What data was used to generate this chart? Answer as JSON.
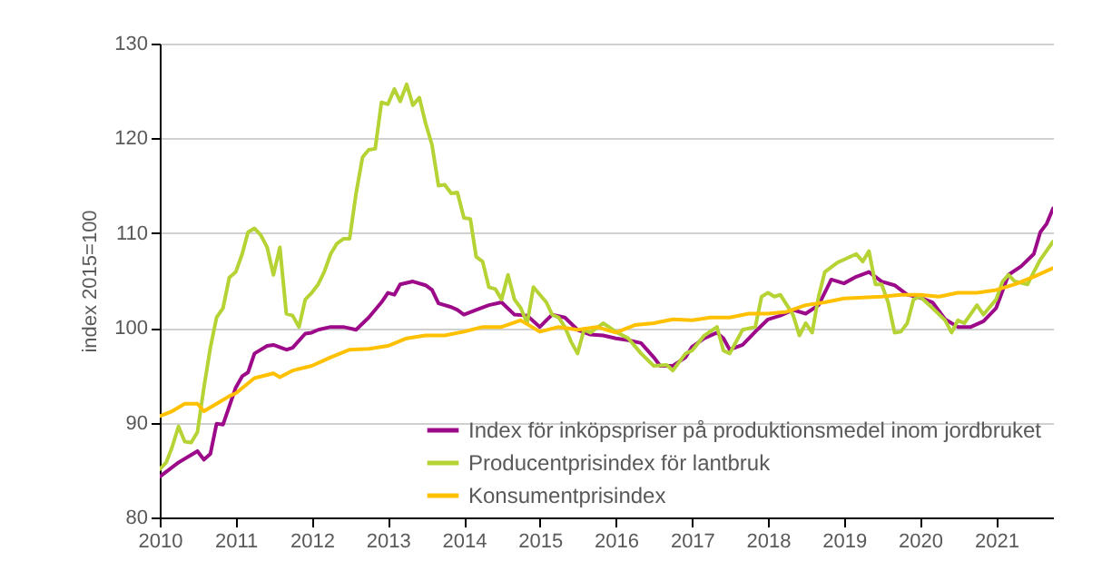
{
  "chart_data": {
    "type": "line",
    "ylabel": "index  2015=100",
    "ylim": [
      80,
      130
    ],
    "yticks": [
      80,
      90,
      100,
      110,
      120,
      130
    ],
    "xlim": [
      "2010-01",
      "2021-10"
    ],
    "xticks": [
      "2010",
      "2011",
      "2012",
      "2013",
      "2014",
      "2015",
      "2016",
      "2017",
      "2018",
      "2019",
      "2020",
      "2021"
    ],
    "grid": "y",
    "legend": "bottom right",
    "marker": "none",
    "line_style": "solid",
    "series": [
      {
        "name": "Index för inköpspriser på produktionsmedel inom jordbruket",
        "color": "#9c0a8a",
        "x": [
          "2010-01",
          "2010-04",
          "2010-07",
          "2010-08",
          "2010-09",
          "2010-10",
          "2010-11",
          "2011-01",
          "2011-02",
          "2011-03",
          "2011-04",
          "2011-06",
          "2011-07",
          "2011-09",
          "2011-10",
          "2011-12",
          "2012-01",
          "2012-02",
          "2012-04",
          "2012-06",
          "2012-08",
          "2012-10",
          "2012-12",
          "2013-01",
          "2013-02",
          "2013-03",
          "2013-05",
          "2013-07",
          "2013-08",
          "2013-09",
          "2013-11",
          "2013-12",
          "2014-01",
          "2014-03",
          "2014-05",
          "2014-07",
          "2014-09",
          "2014-11",
          "2015-01",
          "2015-02",
          "2015-03",
          "2015-05",
          "2015-07",
          "2015-09",
          "2015-11",
          "2016-01",
          "2016-03",
          "2016-05",
          "2016-07",
          "2016-08",
          "2016-10",
          "2016-12",
          "2017-01",
          "2017-03",
          "2017-05",
          "2017-06",
          "2017-07",
          "2017-09",
          "2017-11",
          "2018-01",
          "2018-03",
          "2018-05",
          "2018-07",
          "2018-09",
          "2018-11",
          "2019-01",
          "2019-03",
          "2019-05",
          "2019-07",
          "2019-09",
          "2019-11",
          "2020-01",
          "2020-03",
          "2020-05",
          "2020-07",
          "2020-09",
          "2020-11",
          "2021-01",
          "2021-03",
          "2021-05",
          "2021-07",
          "2021-08",
          "2021-09",
          "2021-10"
        ],
        "values": [
          84.3,
          85.8,
          87.0,
          86.1,
          86.7,
          89.9,
          89.8,
          93.7,
          94.9,
          95.3,
          97.3,
          98.1,
          98.2,
          97.7,
          97.9,
          99.4,
          99.5,
          99.8,
          100.1,
          100.1,
          99.8,
          101.1,
          102.7,
          103.7,
          103.5,
          104.6,
          104.9,
          104.5,
          104.0,
          102.6,
          102.2,
          101.9,
          101.4,
          101.9,
          102.4,
          102.7,
          101.4,
          101.3,
          100.1,
          100.8,
          101.4,
          101.1,
          99.8,
          99.3,
          99.2,
          98.9,
          98.7,
          98.4,
          96.9,
          96.0,
          96.0,
          96.9,
          98.0,
          98.9,
          99.5,
          98.9,
          97.7,
          98.2,
          99.6,
          100.9,
          101.3,
          101.9,
          101.5,
          102.4,
          105.1,
          104.7,
          105.4,
          105.9,
          104.9,
          104.5,
          103.5,
          103.2,
          102.7,
          100.9,
          100.1,
          100.1,
          100.7,
          102.1,
          105.6,
          106.5,
          107.8,
          110.1,
          111.0,
          112.6
        ]
      },
      {
        "name": "Producentprisindex för lantbruk",
        "color": "#b5d334",
        "x": [
          "2010-01",
          "2010-02",
          "2010-03",
          "2010-04",
          "2010-05",
          "2010-06",
          "2010-07",
          "2010-08",
          "2010-09",
          "2010-10",
          "2010-11",
          "2010-12",
          "2011-01",
          "2011-02",
          "2011-03",
          "2011-04",
          "2011-05",
          "2011-06",
          "2011-07",
          "2011-08",
          "2011-09",
          "2011-10",
          "2011-11",
          "2011-12",
          "2012-01",
          "2012-02",
          "2012-03",
          "2012-04",
          "2012-05",
          "2012-06",
          "2012-07",
          "2012-08",
          "2012-09",
          "2012-10",
          "2012-11",
          "2012-12",
          "2013-01",
          "2013-02",
          "2013-03",
          "2013-04",
          "2013-05",
          "2013-06",
          "2013-07",
          "2013-08",
          "2013-09",
          "2013-10",
          "2013-11",
          "2013-12",
          "2014-01",
          "2014-02",
          "2014-03",
          "2014-04",
          "2014-05",
          "2014-06",
          "2014-07",
          "2014-08",
          "2014-09",
          "2014-10",
          "2014-11",
          "2014-12",
          "2015-02",
          "2015-03",
          "2015-04",
          "2015-05",
          "2015-06",
          "2015-07",
          "2015-08",
          "2015-09",
          "2015-11",
          "2016-01",
          "2016-03",
          "2016-05",
          "2016-07",
          "2016-09",
          "2016-10",
          "2016-12",
          "2017-01",
          "2017-03",
          "2017-05",
          "2017-06",
          "2017-07",
          "2017-09",
          "2017-11",
          "2017-12",
          "2018-01",
          "2018-02",
          "2018-03",
          "2018-05",
          "2018-06",
          "2018-07",
          "2018-08",
          "2018-09",
          "2018-10",
          "2018-12",
          "2019-01",
          "2019-03",
          "2019-04",
          "2019-05",
          "2019-06",
          "2019-07",
          "2019-08",
          "2019-09",
          "2019-10",
          "2019-11",
          "2019-12",
          "2020-01",
          "2020-03",
          "2020-05",
          "2020-06",
          "2020-07",
          "2020-08",
          "2020-10",
          "2020-11",
          "2021-01",
          "2021-02",
          "2021-03",
          "2021-04",
          "2021-06",
          "2021-07",
          "2021-08",
          "2021-10"
        ],
        "values": [
          85.1,
          85.8,
          87.4,
          89.6,
          88.0,
          87.9,
          89.0,
          93.7,
          97.9,
          101.1,
          102.1,
          105.3,
          105.9,
          107.8,
          110.1,
          110.5,
          109.8,
          108.5,
          105.6,
          108.5,
          101.5,
          101.3,
          100.1,
          103.0,
          103.7,
          104.6,
          105.9,
          107.8,
          108.9,
          109.4,
          109.4,
          114.2,
          118.0,
          118.8,
          118.9,
          123.8,
          123.6,
          125.2,
          123.9,
          125.7,
          123.5,
          124.3,
          121.6,
          119.3,
          115.0,
          115.1,
          114.2,
          114.3,
          111.6,
          111.5,
          107.5,
          107.0,
          104.3,
          104.1,
          103.0,
          105.6,
          103.0,
          102.1,
          100.5,
          104.3,
          102.7,
          101.4,
          101.1,
          100.1,
          98.5,
          97.3,
          99.8,
          99.5,
          100.5,
          99.6,
          98.9,
          97.3,
          96.0,
          96.1,
          95.5,
          97.3,
          97.6,
          99.2,
          100.1,
          97.6,
          97.3,
          99.8,
          100.1,
          103.3,
          103.7,
          103.3,
          103.5,
          101.4,
          99.2,
          100.5,
          99.5,
          103.3,
          105.9,
          106.9,
          107.2,
          107.8,
          107.0,
          108.1,
          104.6,
          104.6,
          102.7,
          99.5,
          99.6,
          100.5,
          103.0,
          103.3,
          102.1,
          100.8,
          99.5,
          100.8,
          100.5,
          102.4,
          101.4,
          103.0,
          104.9,
          105.6,
          104.9,
          104.6,
          105.9,
          107.2,
          109.1
        ]
      },
      {
        "name": "Konsumentprisindex",
        "color": "#ffc000",
        "x": [
          "2010-01",
          "2010-03",
          "2010-05",
          "2010-07",
          "2010-08",
          "2010-10",
          "2010-12",
          "2011-01",
          "2011-04",
          "2011-07",
          "2011-08",
          "2011-10",
          "2012-01",
          "2012-04",
          "2012-07",
          "2012-10",
          "2013-01",
          "2013-04",
          "2013-07",
          "2013-10",
          "2014-01",
          "2014-04",
          "2014-07",
          "2014-10",
          "2015-01",
          "2015-04",
          "2015-07",
          "2015-10",
          "2016-01",
          "2016-04",
          "2016-07",
          "2016-10",
          "2017-01",
          "2017-04",
          "2017-07",
          "2017-10",
          "2018-01",
          "2018-04",
          "2018-07",
          "2018-10",
          "2019-01",
          "2019-04",
          "2019-07",
          "2019-10",
          "2020-01",
          "2020-04",
          "2020-07",
          "2020-10",
          "2021-01",
          "2021-04",
          "2021-07",
          "2021-10"
        ],
        "values": [
          90.7,
          91.2,
          92.0,
          92.0,
          91.2,
          92.0,
          92.8,
          93.1,
          94.7,
          95.2,
          94.8,
          95.5,
          96.0,
          96.9,
          97.7,
          97.8,
          98.1,
          98.9,
          99.2,
          99.2,
          99.6,
          100.1,
          100.1,
          100.8,
          99.6,
          100.1,
          99.8,
          100.1,
          99.5,
          100.3,
          100.5,
          100.9,
          100.8,
          101.1,
          101.1,
          101.5,
          101.5,
          101.7,
          102.4,
          102.7,
          103.1,
          103.2,
          103.3,
          103.5,
          103.5,
          103.3,
          103.7,
          103.7,
          104.0,
          104.6,
          105.4,
          106.3
        ]
      }
    ]
  }
}
